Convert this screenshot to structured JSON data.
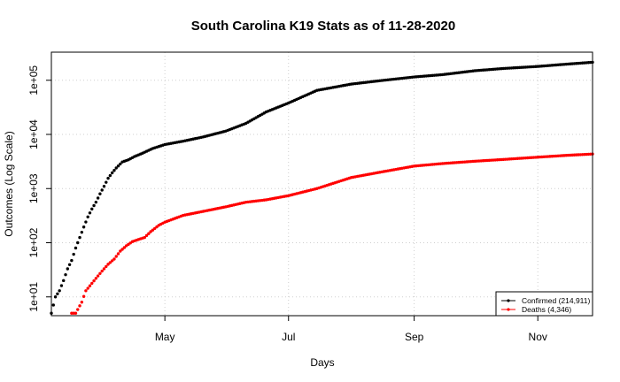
{
  "chart_data": {
    "type": "scatter",
    "title": "South Carolina K19 Stats as of 11-28-2020",
    "xlabel": "Days",
    "ylabel": "Outcomes (Log Scale)",
    "y_scale": "log",
    "x_range": [
      "2020-03-06",
      "2020-11-28"
    ],
    "y_range": [
      4.5,
      330000
    ],
    "x_ticks": [
      {
        "date": "2020-05-01",
        "label": "May"
      },
      {
        "date": "2020-07-01",
        "label": "Jul"
      },
      {
        "date": "2020-09-01",
        "label": "Sep"
      },
      {
        "date": "2020-11-01",
        "label": "Nov"
      }
    ],
    "y_ticks": [
      {
        "value": 10,
        "label": "1e+01"
      },
      {
        "value": 100,
        "label": "1e+02"
      },
      {
        "value": 1000,
        "label": "1e+03"
      },
      {
        "value": 10000,
        "label": "1e+04"
      },
      {
        "value": 100000,
        "label": "1e+05"
      }
    ],
    "grid": true,
    "legend_position": "bottom-right",
    "series": [
      {
        "name": "Confirmed (214,911)",
        "color": "#000000",
        "points": [
          [
            "2020-03-06",
            5
          ],
          [
            "2020-03-08",
            10
          ],
          [
            "2020-03-10",
            13
          ],
          [
            "2020-03-12",
            20
          ],
          [
            "2020-03-14",
            33
          ],
          [
            "2020-03-16",
            47
          ],
          [
            "2020-03-18",
            80
          ],
          [
            "2020-03-20",
            125
          ],
          [
            "2020-03-22",
            195
          ],
          [
            "2020-03-24",
            300
          ],
          [
            "2020-03-26",
            420
          ],
          [
            "2020-03-28",
            560
          ],
          [
            "2020-03-30",
            800
          ],
          [
            "2020-04-01",
            1100
          ],
          [
            "2020-04-03",
            1550
          ],
          [
            "2020-04-05",
            1950
          ],
          [
            "2020-04-07",
            2400
          ],
          [
            "2020-04-10",
            3100
          ],
          [
            "2020-04-13",
            3400
          ],
          [
            "2020-04-16",
            3900
          ],
          [
            "2020-04-20",
            4500
          ],
          [
            "2020-04-25",
            5500
          ],
          [
            "2020-05-01",
            6500
          ],
          [
            "2020-05-10",
            7500
          ],
          [
            "2020-05-20",
            9000
          ],
          [
            "2020-05-31",
            11500
          ],
          [
            "2020-06-10",
            16000
          ],
          [
            "2020-06-20",
            26000
          ],
          [
            "2020-07-01",
            38000
          ],
          [
            "2020-07-15",
            65000
          ],
          [
            "2020-08-01",
            85000
          ],
          [
            "2020-08-15",
            98000
          ],
          [
            "2020-09-01",
            115000
          ],
          [
            "2020-09-15",
            127000
          ],
          [
            "2020-10-01",
            150000
          ],
          [
            "2020-10-15",
            165000
          ],
          [
            "2020-11-01",
            180000
          ],
          [
            "2020-11-15",
            198000
          ],
          [
            "2020-11-28",
            214911
          ]
        ]
      },
      {
        "name": "Deaths (4,346)",
        "color": "#ff0000",
        "points": [
          [
            "2020-03-16",
            5
          ],
          [
            "2020-03-18",
            5
          ],
          [
            "2020-03-21",
            8
          ],
          [
            "2020-03-23",
            13
          ],
          [
            "2020-03-25",
            16
          ],
          [
            "2020-03-28",
            22
          ],
          [
            "2020-03-31",
            30
          ],
          [
            "2020-04-03",
            40
          ],
          [
            "2020-04-06",
            50
          ],
          [
            "2020-04-09",
            70
          ],
          [
            "2020-04-12",
            88
          ],
          [
            "2020-04-15",
            105
          ],
          [
            "2020-04-18",
            115
          ],
          [
            "2020-04-21",
            125
          ],
          [
            "2020-04-24",
            160
          ],
          [
            "2020-04-28",
            210
          ],
          [
            "2020-05-01",
            240
          ],
          [
            "2020-05-10",
            320
          ],
          [
            "2020-05-20",
            380
          ],
          [
            "2020-05-31",
            460
          ],
          [
            "2020-06-10",
            560
          ],
          [
            "2020-06-20",
            620
          ],
          [
            "2020-07-01",
            740
          ],
          [
            "2020-07-15",
            1000
          ],
          [
            "2020-08-01",
            1600
          ],
          [
            "2020-08-15",
            2000
          ],
          [
            "2020-09-01",
            2600
          ],
          [
            "2020-09-15",
            2900
          ],
          [
            "2020-10-01",
            3200
          ],
          [
            "2020-10-15",
            3450
          ],
          [
            "2020-11-01",
            3800
          ],
          [
            "2020-11-15",
            4100
          ],
          [
            "2020-11-28",
            4346
          ]
        ]
      }
    ]
  }
}
